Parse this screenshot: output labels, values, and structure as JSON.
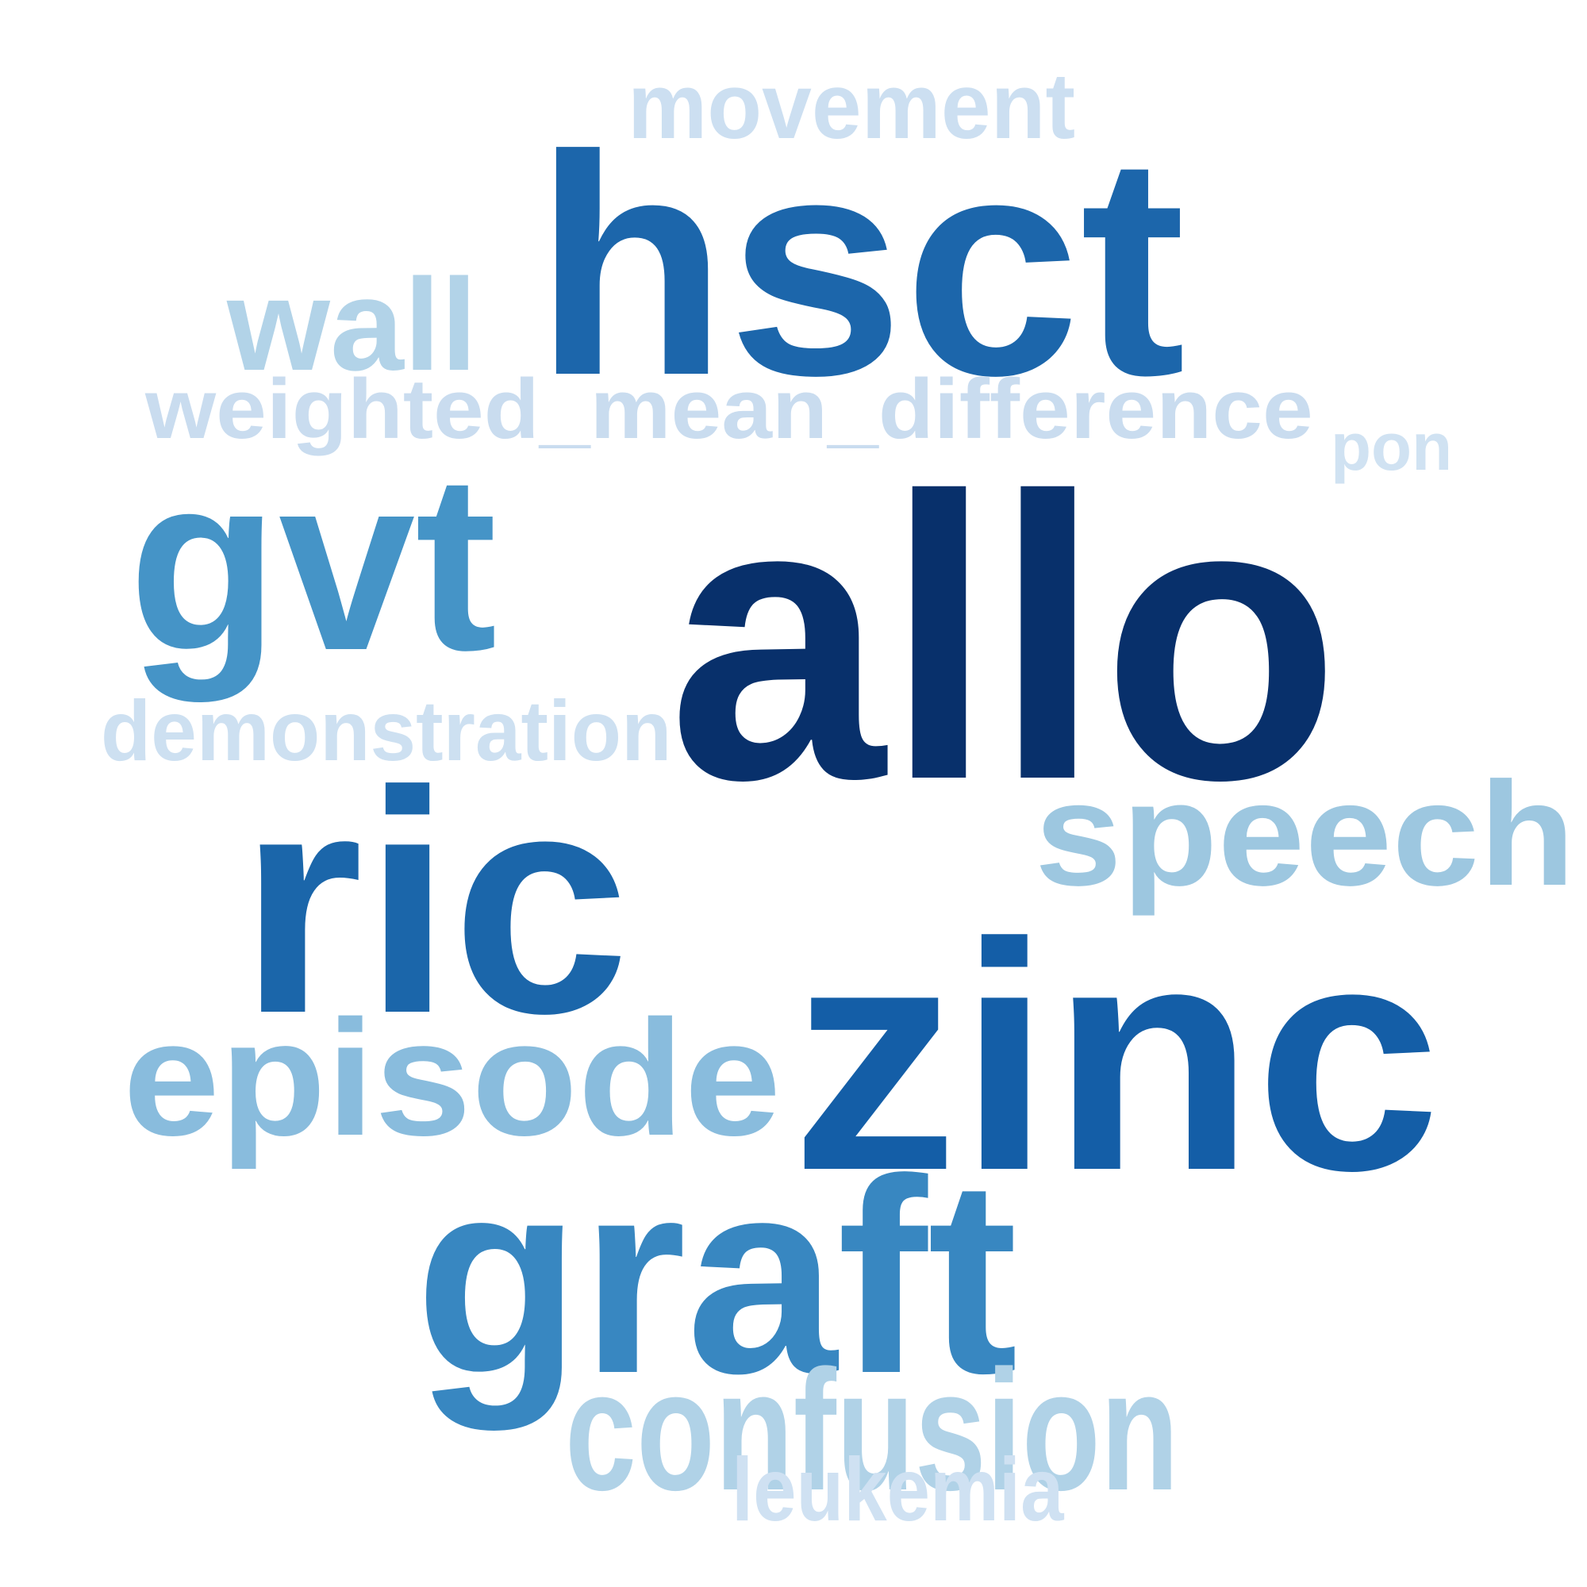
{
  "word_cloud": {
    "words": [
      {
        "text": "allo",
        "color": "#08306b"
      },
      {
        "text": "hsct",
        "color": "#1c66ab"
      },
      {
        "text": "zinc",
        "color": "#145ea7"
      },
      {
        "text": "ric",
        "color": "#1b66aa"
      },
      {
        "text": "graft",
        "color": "#3887c1"
      },
      {
        "text": "gvt",
        "color": "#4594c7"
      },
      {
        "text": "episode",
        "color": "#89bcdd"
      },
      {
        "text": "speech",
        "color": "#9dc7e0"
      },
      {
        "text": "confusion",
        "color": "#b0d2e7"
      },
      {
        "text": "wall",
        "color": "#b2d3e8"
      },
      {
        "text": "weighted_mean_difference",
        "color": "#c9dcef"
      },
      {
        "text": "movement",
        "color": "#ccdff1"
      },
      {
        "text": "demonstration",
        "color": "#cde0f1"
      },
      {
        "text": "leukemia",
        "color": "#cfe1f2"
      },
      {
        "text": "pon",
        "color": "#d0e2f2"
      }
    ]
  }
}
